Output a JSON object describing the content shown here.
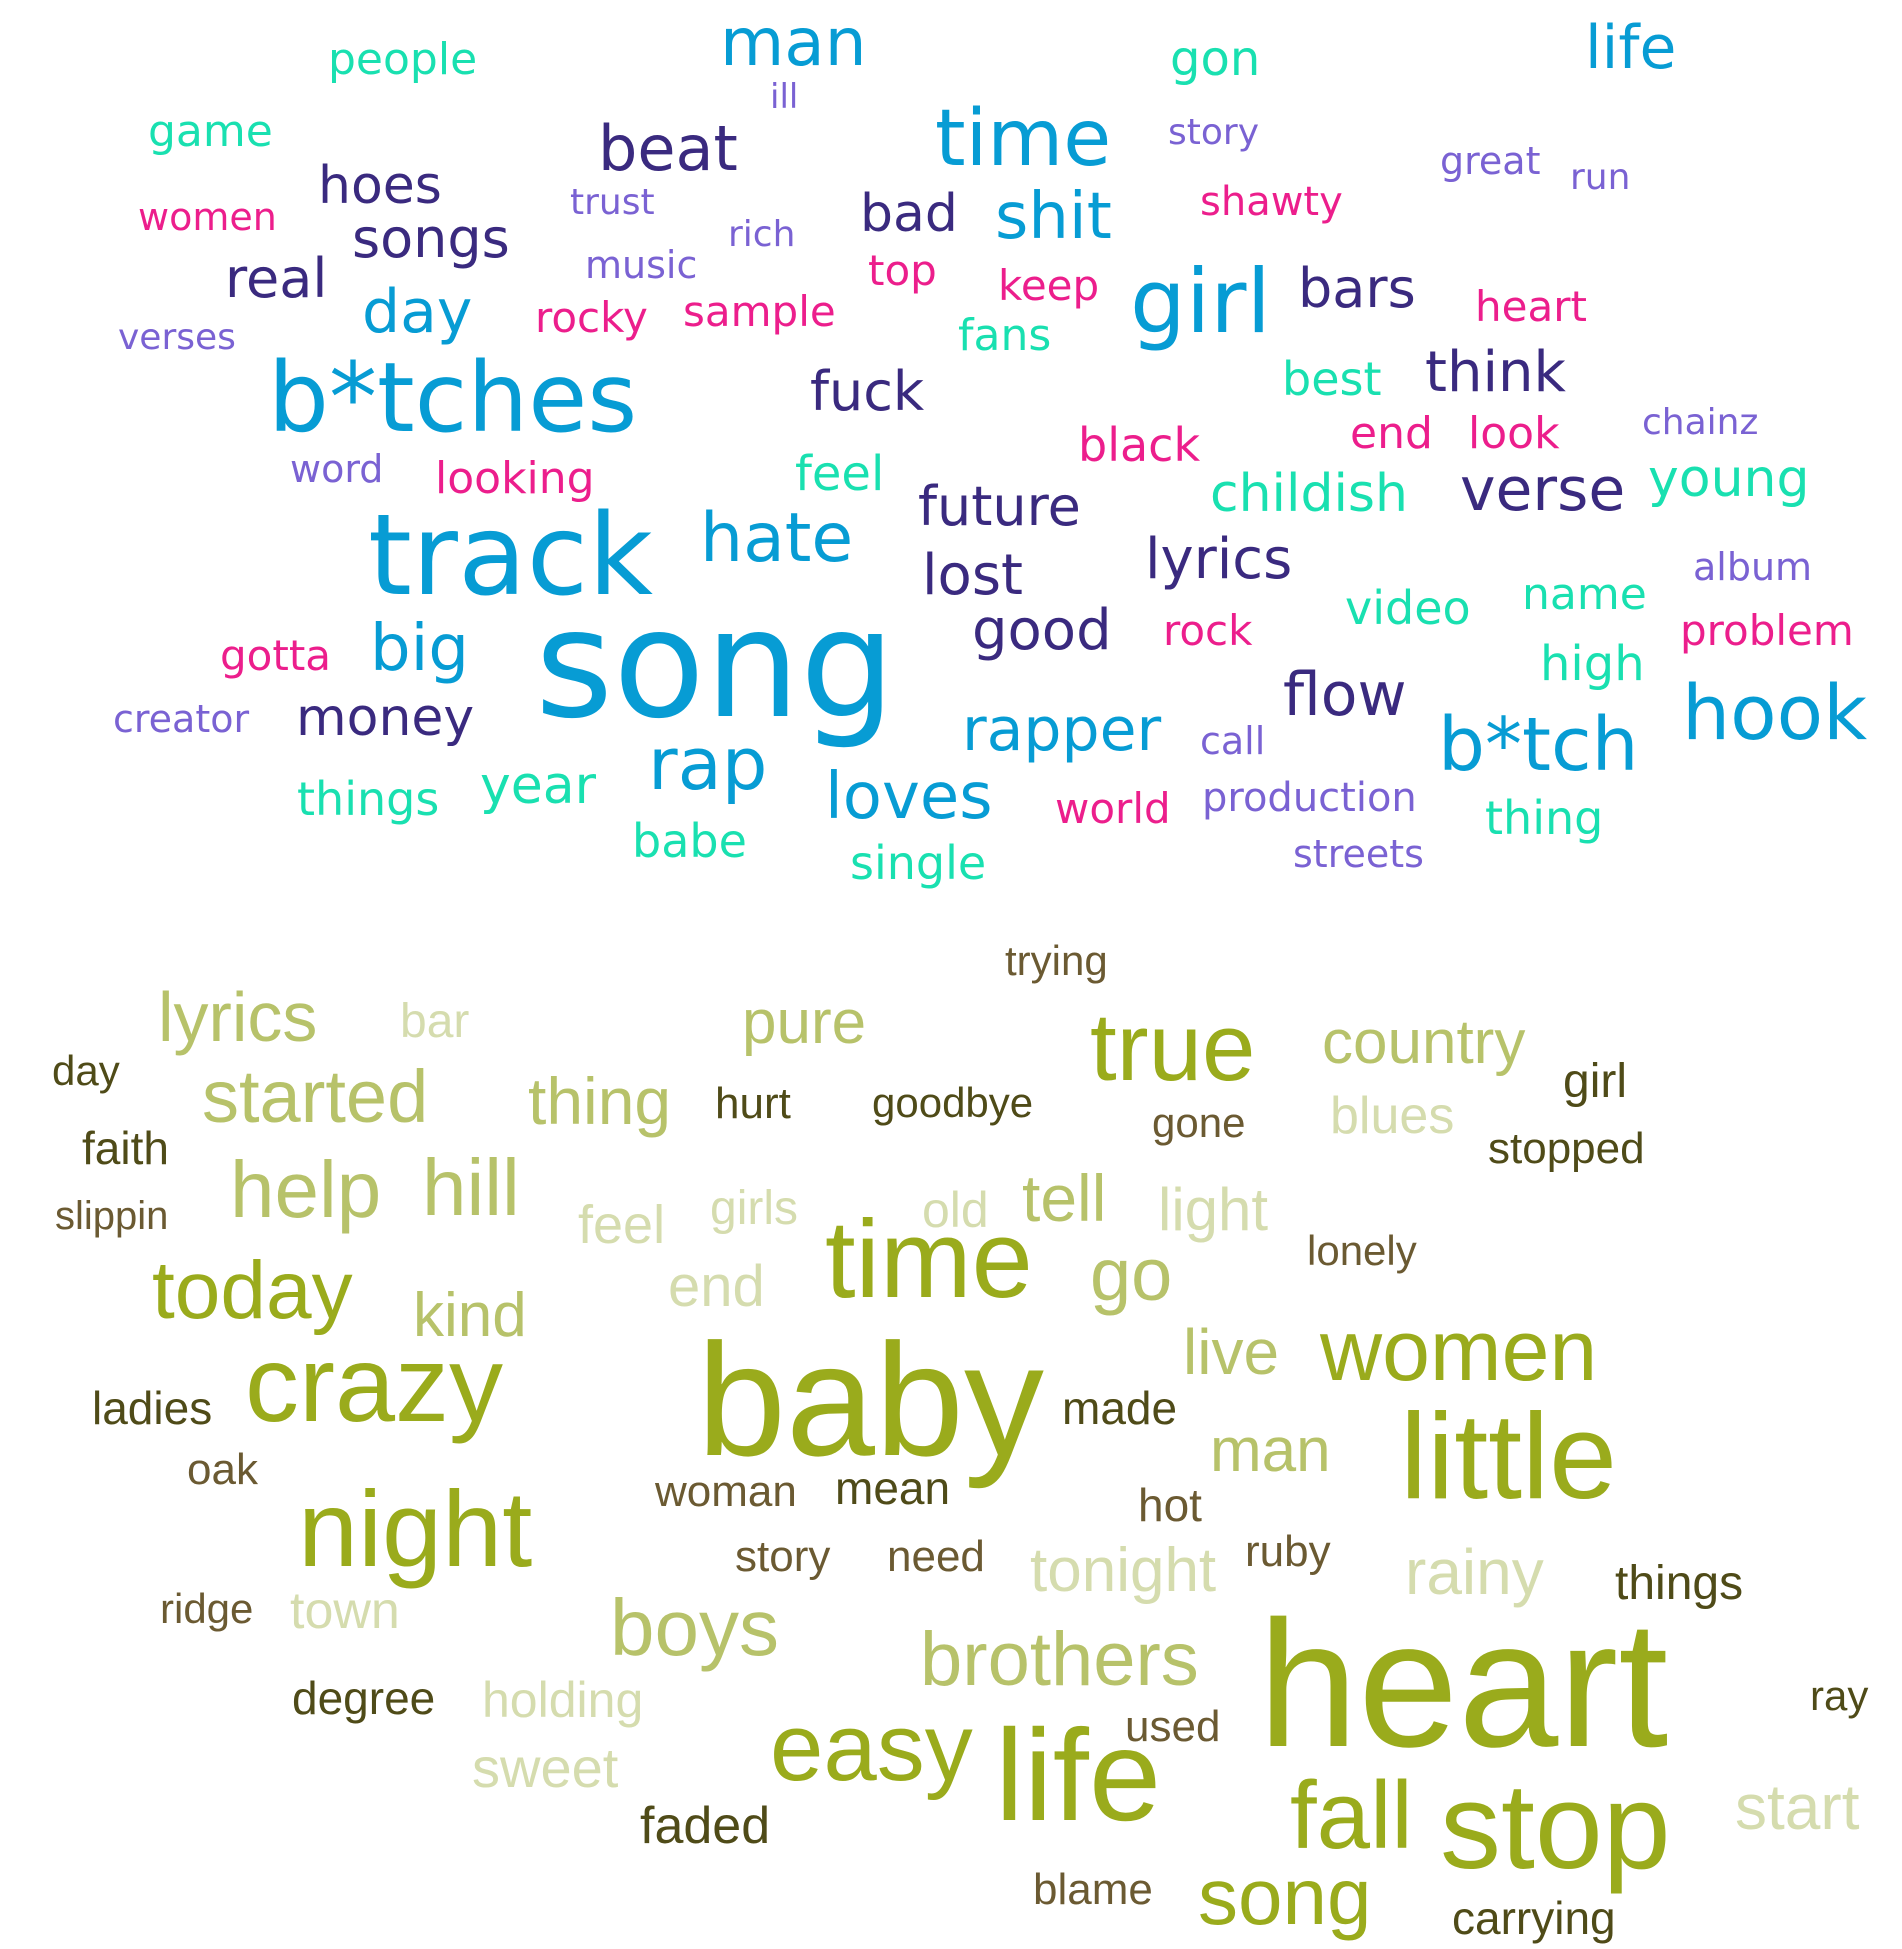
{
  "palettes": {
    "top": [
      "#079cd4",
      "#3a2a7f",
      "#ec1e8c",
      "#19e0b0",
      "#7a62d3"
    ],
    "bottom": [
      "#9aab1c",
      "#b7c26a",
      "#d5dcae",
      "#6b5a32",
      "#4f4b18"
    ]
  },
  "top_cloud": {
    "words": [
      {
        "text": "man",
        "c": 0
      },
      {
        "text": "life",
        "c": 0
      },
      {
        "text": "people",
        "c": 3
      },
      {
        "text": "gon",
        "c": 3
      },
      {
        "text": "ill",
        "c": 4
      },
      {
        "text": "game",
        "c": 3
      },
      {
        "text": "beat",
        "c": 1
      },
      {
        "text": "time",
        "c": 0
      },
      {
        "text": "story",
        "c": 4
      },
      {
        "text": "great",
        "c": 4
      },
      {
        "text": "run",
        "c": 4
      },
      {
        "text": "hoes",
        "c": 1
      },
      {
        "text": "trust",
        "c": 4
      },
      {
        "text": "women",
        "c": 2
      },
      {
        "text": "bad",
        "c": 1
      },
      {
        "text": "shit",
        "c": 0
      },
      {
        "text": "shawty",
        "c": 2
      },
      {
        "text": "songs",
        "c": 1
      },
      {
        "text": "rich",
        "c": 4
      },
      {
        "text": "music",
        "c": 4
      },
      {
        "text": "top",
        "c": 2
      },
      {
        "text": "real",
        "c": 1
      },
      {
        "text": "keep",
        "c": 2
      },
      {
        "text": "girl",
        "c": 0
      },
      {
        "text": "bars",
        "c": 1
      },
      {
        "text": "heart",
        "c": 2
      },
      {
        "text": "day",
        "c": 0
      },
      {
        "text": "rocky",
        "c": 2
      },
      {
        "text": "sample",
        "c": 2
      },
      {
        "text": "verses",
        "c": 4
      },
      {
        "text": "fans",
        "c": 3
      },
      {
        "text": "b*tches",
        "c": 0
      },
      {
        "text": "best",
        "c": 3
      },
      {
        "text": "think",
        "c": 1
      },
      {
        "text": "fuck",
        "c": 1
      },
      {
        "text": "chainz",
        "c": 4
      },
      {
        "text": "end",
        "c": 2
      },
      {
        "text": "look",
        "c": 2
      },
      {
        "text": "black",
        "c": 2
      },
      {
        "text": "word",
        "c": 4
      },
      {
        "text": "looking",
        "c": 2
      },
      {
        "text": "feel",
        "c": 3
      },
      {
        "text": "childish",
        "c": 3
      },
      {
        "text": "verse",
        "c": 1
      },
      {
        "text": "young",
        "c": 3
      },
      {
        "text": "future",
        "c": 1
      },
      {
        "text": "track",
        "c": 0
      },
      {
        "text": "hate",
        "c": 0
      },
      {
        "text": "lyrics",
        "c": 1
      },
      {
        "text": "album",
        "c": 4
      },
      {
        "text": "lost",
        "c": 1
      },
      {
        "text": "name",
        "c": 3
      },
      {
        "text": "video",
        "c": 3
      },
      {
        "text": "song",
        "c": 0
      },
      {
        "text": "good",
        "c": 1
      },
      {
        "text": "rock",
        "c": 2
      },
      {
        "text": "problem",
        "c": 2
      },
      {
        "text": "gotta",
        "c": 2
      },
      {
        "text": "big",
        "c": 0
      },
      {
        "text": "high",
        "c": 3
      },
      {
        "text": "flow",
        "c": 1
      },
      {
        "text": "creator",
        "c": 4
      },
      {
        "text": "money",
        "c": 1
      },
      {
        "text": "hook",
        "c": 0
      },
      {
        "text": "b*tch",
        "c": 0
      },
      {
        "text": "rapper",
        "c": 0
      },
      {
        "text": "call",
        "c": 4
      },
      {
        "text": "rap",
        "c": 0
      },
      {
        "text": "things",
        "c": 3
      },
      {
        "text": "year",
        "c": 3
      },
      {
        "text": "loves",
        "c": 0
      },
      {
        "text": "world",
        "c": 2
      },
      {
        "text": "production",
        "c": 4
      },
      {
        "text": "thing",
        "c": 3
      },
      {
        "text": "babe",
        "c": 3
      },
      {
        "text": "single",
        "c": 3
      },
      {
        "text": "streets",
        "c": 4
      }
    ]
  },
  "bottom_cloud": {
    "words": [
      {
        "text": "trying",
        "c": 3
      },
      {
        "text": "lyrics",
        "c": 1
      },
      {
        "text": "bar",
        "c": 2
      },
      {
        "text": "pure",
        "c": 1
      },
      {
        "text": "true",
        "c": 0
      },
      {
        "text": "country",
        "c": 1
      },
      {
        "text": "day",
        "c": 4
      },
      {
        "text": "girl",
        "c": 4
      },
      {
        "text": "started",
        "c": 1
      },
      {
        "text": "thing",
        "c": 1
      },
      {
        "text": "hurt",
        "c": 4
      },
      {
        "text": "goodbye",
        "c": 4
      },
      {
        "text": "gone",
        "c": 3
      },
      {
        "text": "blues",
        "c": 2
      },
      {
        "text": "faith",
        "c": 4
      },
      {
        "text": "stopped",
        "c": 4
      },
      {
        "text": "help",
        "c": 1
      },
      {
        "text": "hill",
        "c": 1
      },
      {
        "text": "slippin",
        "c": 3
      },
      {
        "text": "feel",
        "c": 2
      },
      {
        "text": "girls",
        "c": 2
      },
      {
        "text": "old",
        "c": 2
      },
      {
        "text": "tell",
        "c": 1
      },
      {
        "text": "light",
        "c": 2
      },
      {
        "text": "time",
        "c": 0
      },
      {
        "text": "lonely",
        "c": 3
      },
      {
        "text": "today",
        "c": 0
      },
      {
        "text": "end",
        "c": 2
      },
      {
        "text": "go",
        "c": 1
      },
      {
        "text": "kind",
        "c": 1
      },
      {
        "text": "live",
        "c": 1
      },
      {
        "text": "women",
        "c": 0
      },
      {
        "text": "crazy",
        "c": 0
      },
      {
        "text": "baby",
        "c": 0
      },
      {
        "text": "ladies",
        "c": 4
      },
      {
        "text": "made",
        "c": 4
      },
      {
        "text": "little",
        "c": 0
      },
      {
        "text": "oak",
        "c": 3
      },
      {
        "text": "man",
        "c": 1
      },
      {
        "text": "night",
        "c": 0
      },
      {
        "text": "woman",
        "c": 3
      },
      {
        "text": "mean",
        "c": 4
      },
      {
        "text": "hot",
        "c": 3
      },
      {
        "text": "story",
        "c": 3
      },
      {
        "text": "need",
        "c": 3
      },
      {
        "text": "ruby",
        "c": 3
      },
      {
        "text": "tonight",
        "c": 2
      },
      {
        "text": "rainy",
        "c": 2
      },
      {
        "text": "things",
        "c": 4
      },
      {
        "text": "ridge",
        "c": 3
      },
      {
        "text": "town",
        "c": 2
      },
      {
        "text": "boys",
        "c": 1
      },
      {
        "text": "brothers",
        "c": 1
      },
      {
        "text": "heart",
        "c": 0
      },
      {
        "text": "degree",
        "c": 4
      },
      {
        "text": "holding",
        "c": 2
      },
      {
        "text": "ray",
        "c": 4
      },
      {
        "text": "used",
        "c": 3
      },
      {
        "text": "easy",
        "c": 0
      },
      {
        "text": "sweet",
        "c": 2
      },
      {
        "text": "life",
        "c": 0
      },
      {
        "text": "fall",
        "c": 0
      },
      {
        "text": "stop",
        "c": 0
      },
      {
        "text": "start",
        "c": 2
      },
      {
        "text": "faded",
        "c": 4
      },
      {
        "text": "blame",
        "c": 3
      },
      {
        "text": "song",
        "c": 0
      },
      {
        "text": "carrying",
        "c": 4
      }
    ]
  }
}
